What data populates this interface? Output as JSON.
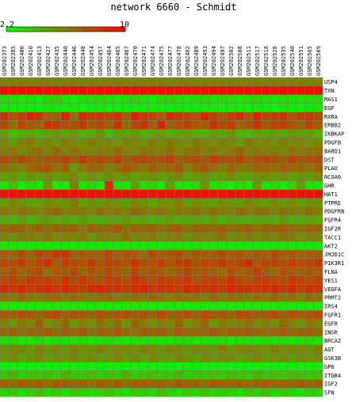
{
  "chart_data": {
    "type": "heatmap",
    "title": "network 6660 - Schmidt",
    "colorbar": {
      "min": 2.2,
      "max": 10,
      "min_label": "2.2",
      "max_label": "10",
      "low_color": "#00ff00",
      "high_color": "#ff0000"
    },
    "columns": [
      "GSM202373",
      "GSM202385",
      "GSM202400",
      "GSM202410",
      "GSM202413",
      "GSM202427",
      "GSM202435",
      "GSM202440",
      "GSM202446",
      "GSM202448",
      "GSM202454",
      "GSM202457",
      "GSM202464",
      "GSM202465",
      "GSM202467",
      "GSM202470",
      "GSM202471",
      "GSM202474",
      "GSM202475",
      "GSM202477",
      "GSM202478",
      "GSM202482",
      "GSM202489",
      "GSM202493",
      "GSM202494",
      "GSM202497",
      "GSM202502",
      "GSM202508",
      "GSM202511",
      "GSM202517",
      "GSM202518",
      "GSM202528",
      "GSM202535",
      "GSM202540",
      "GSM202551",
      "GSM202565",
      "GSM202569"
    ],
    "rows": [
      "USP4",
      "TXN",
      "MAS1",
      "EGF",
      "RXRA",
      "ERBB2",
      "IKBKAP",
      "PDGFB",
      "BARD1",
      "DST",
      "PLAU",
      "NCOA6",
      "GHR",
      "HAT1",
      "PTPRE",
      "PDGFRB",
      "FGFR4",
      "IGF2R",
      "TACC1",
      "AKT2",
      "JMJD1C",
      "PIK3R1",
      "FLNA",
      "YES1",
      "VEGFA",
      "PRMT2",
      "IRS4",
      "FGFR1",
      "EGFR",
      "INSR",
      "BRCA2",
      "AGT",
      "GSK3B",
      "GP6",
      "ITGB4",
      "IGF2",
      "SFN"
    ],
    "values": [
      [
        6.1,
        6.1,
        6.1,
        6.1,
        6.1,
        6.1,
        6.1,
        6.1,
        6.1,
        6.1,
        6.1,
        6.1,
        6.1,
        6.1,
        6.1,
        6.1,
        6.1,
        6.1,
        6.1,
        6.1,
        6.1,
        6.1,
        6.1,
        6.1,
        6.1,
        6.1,
        6.1,
        6.1,
        6.1,
        6.1,
        6.1,
        6.1,
        6.1,
        6.1,
        6.1,
        6.1,
        6.1
      ],
      [
        9.6,
        9.6,
        9.6,
        9.6,
        9.6,
        9.6,
        9.6,
        9.6,
        9.6,
        9.6,
        9.6,
        9.6,
        9.6,
        9.6,
        9.6,
        9.6,
        9.6,
        9.6,
        9.6,
        9.6,
        9.6,
        9.6,
        9.6,
        9.6,
        9.6,
        9.6,
        9.6,
        9.6,
        9.6,
        9.6,
        9.6,
        9.6,
        9.6,
        9.6,
        9.6,
        9.6,
        9.6
      ],
      [
        3.2,
        3.0,
        2.8,
        3.0,
        2.6,
        3.4,
        3.6,
        3.0,
        2.4,
        2.9,
        3.1,
        3.3,
        3.0,
        2.8,
        3.1,
        3.5,
        3.0,
        2.6,
        3.2,
        3.4,
        3.0,
        2.8,
        3.1,
        3.3,
        2.9,
        3.2,
        3.0,
        2.7,
        3.1,
        3.4,
        3.0,
        2.9,
        3.2,
        3.1,
        2.8,
        3.0,
        3.3
      ],
      [
        2.7,
        2.8,
        2.7,
        2.6,
        2.5,
        2.8,
        2.7,
        2.6,
        2.8,
        2.7,
        2.6,
        2.8,
        2.7,
        2.6,
        2.8,
        2.7,
        2.6,
        2.8,
        2.7,
        2.6,
        2.8,
        2.7,
        2.6,
        2.8,
        2.7,
        2.6,
        2.8,
        2.7,
        2.6,
        2.8,
        2.7,
        2.6,
        2.8,
        2.7,
        2.6,
        2.8,
        2.7
      ],
      [
        8.3,
        7.6,
        8.1,
        9.0,
        8.4,
        7.2,
        7.0,
        8.8,
        6.6,
        8.6,
        8.1,
        8.3,
        7.9,
        8.5,
        7.1,
        9.1,
        8.2,
        8.0,
        7.4,
        8.6,
        8.2,
        7.8,
        7.6,
        8.9,
        8.0,
        7.4,
        8.1,
        8.5,
        7.3,
        8.8,
        7.9,
        8.2,
        8.3,
        7.5,
        8.0,
        8.1,
        7.7
      ],
      [
        7.7,
        6.5,
        8.0,
        7.3,
        6.9,
        8.4,
        8.1,
        7.5,
        7.8,
        8.3,
        7.2,
        7.9,
        7.1,
        8.5,
        6.6,
        7.8,
        8.3,
        7.0,
        8.8,
        6.9,
        7.6,
        8.0,
        7.4,
        7.2,
        8.5,
        7.7,
        8.1,
        6.9,
        7.5,
        8.4,
        7.3,
        7.9,
        8.1,
        7.6,
        6.8,
        8.0,
        7.4
      ],
      [
        5.1,
        4.2,
        4.6,
        5.0,
        4.4,
        4.9,
        5.5,
        4.7,
        5.2,
        4.5,
        4.8,
        5.6,
        4.3,
        5.1,
        4.9,
        5.4,
        4.6,
        5.0,
        5.3,
        4.5,
        4.8,
        5.2,
        4.7,
        4.4,
        5.1,
        4.9,
        5.5,
        4.6,
        4.3,
        5.0,
        4.8,
        5.2,
        4.7,
        5.4,
        4.9,
        5.3,
        4.6
      ],
      [
        5.9,
        5.2,
        6.1,
        6.4,
        5.5,
        6.0,
        5.4,
        6.3,
        5.7,
        5.6,
        6.2,
        5.8,
        6.0,
        5.3,
        6.1,
        5.9,
        5.5,
        6.4,
        5.7,
        6.3,
        5.8,
        5.4,
        6.2,
        6.0,
        5.6,
        6.1,
        5.9,
        5.3,
        6.3,
        5.7,
        6.0,
        5.5,
        6.2,
        5.8,
        6.1,
        5.6,
        5.9
      ],
      [
        6.2,
        6.4,
        5.8,
        6.3,
        6.5,
        6.0,
        6.7,
        5.9,
        6.6,
        6.1,
        5.8,
        6.4,
        6.2,
        6.8,
        6.0,
        5.9,
        6.5,
        6.3,
        6.1,
        6.7,
        5.9,
        6.3,
        6.6,
        6.0,
        6.4,
        5.8,
        6.2,
        6.9,
        6.1,
        6.5,
        6.0,
        6.3,
        5.9,
        6.7,
        6.2,
        6.4,
        6.6
      ],
      [
        7.6,
        7.1,
        7.8,
        7.2,
        6.9,
        7.5,
        7.3,
        7.9,
        7.0,
        8.2,
        7.4,
        7.7,
        7.2,
        8.0,
        7.1,
        7.6,
        7.8,
        7.3,
        7.5,
        8.3,
        7.0,
        7.4,
        7.7,
        7.2,
        8.1,
        7.6,
        7.3,
        7.9,
        7.1,
        7.5,
        7.8,
        7.4,
        7.2,
        8.0,
        7.3,
        7.6,
        7.7
      ],
      [
        6.6,
        6.2,
        5.9,
        6.8,
        7.3,
        7.5,
        6.4,
        7.0,
        5.4,
        6.3,
        7.1,
        6.9,
        6.0,
        6.5,
        7.4,
        6.7,
        6.2,
        7.2,
        6.5,
        6.8,
        7.4,
        6.1,
        6.9,
        7.3,
        6.6,
        6.0,
        7.0,
        6.4,
        6.3,
        7.1,
        6.8,
        6.5,
        7.2,
        6.7,
        6.9,
        6.3,
        7.0
      ],
      [
        5.2,
        5.5,
        4.8,
        5.6,
        5.0,
        5.7,
        5.3,
        5.4,
        5.9,
        4.9,
        5.5,
        5.1,
        5.8,
        5.3,
        5.6,
        5.0,
        5.4,
        5.7,
        5.2,
        5.5,
        5.9,
        5.1,
        5.3,
        5.6,
        4.9,
        5.4,
        5.8,
        5.2,
        5.0,
        5.5,
        5.7,
        5.3,
        5.6,
        5.1,
        5.4,
        5.2,
        5.8
      ],
      [
        2.9,
        4.3,
        2.6,
        3.3,
        2.8,
        5.4,
        2.7,
        3.1,
        5.8,
        3.0,
        3.4,
        2.7,
        8.4,
        3.1,
        2.9,
        5.0,
        3.2,
        3.6,
        2.8,
        5.3,
        3.0,
        2.7,
        3.4,
        5.6,
        2.9,
        3.1,
        2.6,
        3.3,
        2.8,
        5.1,
        2.9,
        3.2,
        2.7,
        3.5,
        5.2,
        3.0,
        2.8
      ],
      [
        9.5,
        9.5,
        9.5,
        9.5,
        9.5,
        9.5,
        9.5,
        9.5,
        9.5,
        9.5,
        9.5,
        9.5,
        9.5,
        9.5,
        9.5,
        9.5,
        9.5,
        9.5,
        9.5,
        9.5,
        9.5,
        9.5,
        9.5,
        9.5,
        9.5,
        9.5,
        9.5,
        9.5,
        9.5,
        9.5,
        9.5,
        9.5,
        9.5,
        9.5,
        9.5,
        9.5,
        9.5
      ],
      [
        5.2,
        6.1,
        5.5,
        4.9,
        5.0,
        5.8,
        5.6,
        5.4,
        6.3,
        5.0,
        5.7,
        5.2,
        5.9,
        5.3,
        5.1,
        6.0,
        5.5,
        4.8,
        5.7,
        5.4,
        6.2,
        5.1,
        5.6,
        5.3,
        5.0,
        5.8,
        5.5,
        5.2,
        6.0,
        5.4,
        5.1,
        5.7,
        5.3,
        5.9,
        5.0,
        5.6,
        5.4
      ],
      [
        6.4,
        6.0,
        6.6,
        6.2,
        5.8,
        6.5,
        6.9,
        6.1,
        6.4,
        6.3,
        5.9,
        6.7,
        6.2,
        6.5,
        6.0,
        6.8,
        6.3,
        6.1,
        6.6,
        5.9,
        6.4,
        6.2,
        6.7,
        6.0,
        6.5,
        6.3,
        6.1,
        6.8,
        6.2,
        6.4,
        6.6,
        6.0,
        6.5,
        6.3,
        6.1,
        6.7,
        6.2
      ],
      [
        4.8,
        4.6,
        5.1,
        4.4,
        4.9,
        5.3,
        4.7,
        5.0,
        4.5,
        5.2,
        4.8,
        4.6,
        5.0,
        4.9,
        5.4,
        4.7,
        5.1,
        4.5,
        4.8,
        5.2,
        4.6,
        5.0,
        4.9,
        4.7,
        5.3,
        4.5,
        5.1,
        4.8,
        4.6,
        5.0,
        4.9,
        4.7,
        5.2,
        4.6,
        4.8,
        5.1,
        4.7
      ],
      [
        6.8,
        7.4,
        6.9,
        6.6,
        7.2,
        6.5,
        7.1,
        6.8,
        7.0,
        6.3,
        7.3,
        6.7,
        6.9,
        7.5,
        6.4,
        7.1,
        6.8,
        7.2,
        6.6,
        7.0,
        7.4,
        6.5,
        6.9,
        7.1,
        6.7,
        7.3,
        6.6,
        6.8,
        7.2,
        6.5,
        7.0,
        6.9,
        7.3,
        6.7,
        6.4,
        7.1,
        6.8
      ],
      [
        6.0,
        5.6,
        6.3,
        6.2,
        5.8,
        6.5,
        5.7,
        6.1,
        5.9,
        6.4,
        5.5,
        6.2,
        6.0,
        5.8,
        6.6,
        5.9,
        6.1,
        6.3,
        5.7,
        6.0,
        6.4,
        5.6,
        6.2,
        5.9,
        6.1,
        6.5,
        5.8,
        6.0,
        6.3,
        5.7,
        6.1,
        5.9,
        6.4,
        6.2,
        5.6,
        6.0,
        5.8
      ],
      [
        2.8,
        2.8,
        2.8,
        2.8,
        2.8,
        2.8,
        2.8,
        2.8,
        2.8,
        2.8,
        2.8,
        2.8,
        2.8,
        2.8,
        2.8,
        2.8,
        2.8,
        2.8,
        2.8,
        2.8,
        2.8,
        2.8,
        2.8,
        2.8,
        2.8,
        2.8,
        2.8,
        2.8,
        2.8,
        2.8,
        2.8,
        2.8,
        2.8,
        2.8,
        2.8,
        2.8,
        2.8
      ],
      [
        7.3,
        7.0,
        7.6,
        6.8,
        7.9,
        7.4,
        8.2,
        8.4,
        7.1,
        7.5,
        6.9,
        7.2,
        7.8,
        7.0,
        7.6,
        7.3,
        6.7,
        7.9,
        7.1,
        7.4,
        7.7,
        6.8,
        7.5,
        7.2,
        7.0,
        7.8,
        7.3,
        7.6,
        6.9,
        7.4,
        7.1,
        7.7,
        7.2,
        7.5,
        6.8,
        7.3,
        7.0
      ],
      [
        7.9,
        7.5,
        8.2,
        7.4,
        7.8,
        8.6,
        7.2,
        8.1,
        7.9,
        7.6,
        8.3,
        7.3,
        8.0,
        7.7,
        7.5,
        8.4,
        7.8,
        7.6,
        8.1,
        7.4,
        7.9,
        8.2,
        7.5,
        8.0,
        7.7,
        8.3,
        7.6,
        7.9,
        8.5,
        7.3,
        8.0,
        7.8,
        7.6,
        8.2,
        7.7,
        7.9,
        8.1
      ],
      [
        7.1,
        7.6,
        6.9,
        7.3,
        7.8,
        6.7,
        7.4,
        7.2,
        7.9,
        6.8,
        7.5,
        7.0,
        7.7,
        7.3,
        6.9,
        8.0,
        7.1,
        7.6,
        7.2,
        6.8,
        7.4,
        7.8,
        7.0,
        7.5,
        7.3,
        6.9,
        7.7,
        7.1,
        7.4,
        8.1,
        7.2,
        6.9,
        7.6,
        7.3,
        7.0,
        7.5,
        7.2
      ],
      [
        7.8,
        8.1,
        7.5,
        8.3,
        7.9,
        8.0,
        7.6,
        8.4,
        7.7,
        8.2,
        7.8,
        7.5,
        8.1,
        8.0,
        7.7,
        8.5,
        7.9,
        7.6,
        8.2,
        7.8,
        8.0,
        8.3,
        7.6,
        7.9,
        8.1,
        7.7,
        8.4,
        7.8,
        7.5,
        8.0,
        8.2,
        7.9,
        7.7,
        8.3,
        8.0,
        7.6,
        8.1
      ],
      [
        8.6,
        8.3,
        8.8,
        8.1,
        8.5,
        8.9,
        8.2,
        8.7,
        8.4,
        8.0,
        8.6,
        8.8,
        8.3,
        8.5,
        8.1,
        8.7,
        8.9,
        8.2,
        8.4,
        8.6,
        8.0,
        8.8,
        8.5,
        8.3,
        8.7,
        8.1,
        8.9,
        8.4,
        8.6,
        8.2,
        8.5,
        8.8,
        8.3,
        8.7,
        8.0,
        8.6,
        8.4
      ],
      [
        6.5,
        6.1,
        6.8,
        6.3,
        6.0,
        6.6,
        6.9,
        6.2,
        6.7,
        6.4,
        6.1,
        6.5,
        6.8,
        6.0,
        6.3,
        6.6,
        6.2,
        6.9,
        6.4,
        6.1,
        6.7,
        6.3,
        6.5,
        6.0,
        6.8,
        6.2,
        6.6,
        6.4,
        6.1,
        6.7,
        6.3,
        6.9,
        6.2,
        6.5,
        6.0,
        6.8,
        6.4
      ],
      [
        2.8,
        2.8,
        2.8,
        2.8,
        2.8,
        2.8,
        2.8,
        2.8,
        2.8,
        2.8,
        2.8,
        2.8,
        2.8,
        2.8,
        2.8,
        2.8,
        2.8,
        2.8,
        2.8,
        2.8,
        2.8,
        2.8,
        2.8,
        2.8,
        2.8,
        2.8,
        2.8,
        2.8,
        2.8,
        2.8,
        2.8,
        2.8,
        2.8,
        2.8,
        2.8,
        2.8,
        2.8
      ],
      [
        7.4,
        7.0,
        7.7,
        7.2,
        6.8,
        7.5,
        7.9,
        7.1,
        7.6,
        7.3,
        6.9,
        7.8,
        7.0,
        7.4,
        7.7,
        7.2,
        7.5,
        6.9,
        7.8,
        7.1,
        7.3,
        7.6,
        7.0,
        7.9,
        7.2,
        7.4,
        6.8,
        7.7,
        7.5,
        7.1,
        7.3,
        7.8,
        7.0,
        7.6,
        7.2,
        7.4,
        7.7
      ],
      [
        6.1,
        5.2,
        6.4,
        5.8,
        7.1,
        5.5,
        6.0,
        6.8,
        5.3,
        6.2,
        5.7,
        6.5,
        5.9,
        6.6,
        5.4,
        7.0,
        6.1,
        5.6,
        6.3,
        5.8,
        6.9,
        5.5,
        6.2,
        6.7,
        5.3,
        6.4,
        5.9,
        6.0,
        6.6,
        5.7,
        6.3,
        5.4,
        6.8,
        6.1,
        5.6,
        6.5,
        6.0
      ],
      [
        6.7,
        7.2,
        6.5,
        7.0,
        6.8,
        7.4,
        6.6,
        7.1,
        6.9,
        7.3,
        6.4,
        7.0,
        6.7,
        7.5,
        6.8,
        6.6,
        7.2,
        6.9,
        7.1,
        6.5,
        7.3,
        6.8,
        7.0,
        6.7,
        7.4,
        6.6,
        7.1,
        6.9,
        7.2,
        6.8,
        6.5,
        7.0,
        7.3,
        6.7,
        6.9,
        7.1,
        6.6
      ],
      [
        3.1,
        3.3,
        2.9,
        3.0,
        3.4,
        2.8,
        3.2,
        3.1,
        3.0,
        3.3,
        2.9,
        3.1,
        3.4,
        3.0,
        2.8,
        3.2,
        3.1,
        3.3,
        2.9,
        3.0,
        3.2,
        3.4,
        2.9,
        3.1,
        3.0,
        3.3,
        2.8,
        3.2,
        3.1,
        2.9,
        3.3,
        3.0,
        3.2,
        2.9,
        3.1,
        3.4,
        3.0
      ],
      [
        5.5,
        6.0,
        5.8,
        5.3,
        6.2,
        5.6,
        5.9,
        5.4,
        6.1,
        5.7,
        5.5,
        6.3,
        5.6,
        5.8,
        6.0,
        5.4,
        6.2,
        5.7,
        5.5,
        6.1,
        5.9,
        5.3,
        6.0,
        5.8,
        5.6,
        6.2,
        5.4,
        5.9,
        6.1,
        5.7,
        5.5,
        6.3,
        5.6,
        6.0,
        5.8,
        5.4,
        6.1
      ],
      [
        5.4,
        5.8,
        5.0,
        5.6,
        5.9,
        5.2,
        5.7,
        5.5,
        6.0,
        5.3,
        5.8,
        5.1,
        5.6,
        6.1,
        5.4,
        5.7,
        5.2,
        5.9,
        5.5,
        5.3,
        6.0,
        5.6,
        5.1,
        5.8,
        5.4,
        5.7,
        5.9,
        5.2,
        5.5,
        6.1,
        5.3,
        5.6,
        5.8,
        5.0,
        5.7,
        5.4,
        5.9
      ],
      [
        2.6,
        2.6,
        2.6,
        2.6,
        2.6,
        2.6,
        2.6,
        2.6,
        2.6,
        2.6,
        2.6,
        2.6,
        2.6,
        2.6,
        2.6,
        2.6,
        2.6,
        2.6,
        2.6,
        2.6,
        2.6,
        2.6,
        2.6,
        2.6,
        2.6,
        2.6,
        2.6,
        2.6,
        2.6,
        2.6,
        2.6,
        2.6,
        2.6,
        2.6,
        2.6,
        2.6,
        2.6
      ],
      [
        3.8,
        4.5,
        3.6,
        4.1,
        3.9,
        4.3,
        3.7,
        4.6,
        4.0,
        3.8,
        4.4,
        3.6,
        4.2,
        3.9,
        4.7,
        3.7,
        4.1,
        4.3,
        3.8,
        4.0,
        4.5,
        3.6,
        4.2,
        3.9,
        4.1,
        3.7,
        4.4,
        4.0,
        3.8,
        4.6,
        3.9,
        4.2,
        3.7,
        4.3,
        4.0,
        3.8,
        4.1
      ],
      [
        7.0,
        6.7,
        7.3,
        6.9,
        7.2,
        6.6,
        7.4,
        7.0,
        6.8,
        7.1,
        6.5,
        7.3,
        6.9,
        7.5,
        6.7,
        7.0,
        7.2,
        6.8,
        7.1,
        6.6,
        7.4,
        6.9,
        7.0,
        6.7,
        7.3,
        7.1,
        6.8,
        7.2,
        6.6,
        7.0,
        7.4,
        6.9,
        7.1,
        6.7,
        7.2,
        6.8,
        7.0
      ],
      [
        3.4,
        3.9,
        3.0,
        3.6,
        4.2,
        3.3,
        3.8,
        3.1,
        4.0,
        3.5,
        3.2,
        3.7,
        4.1,
        3.4,
        3.0,
        3.9,
        3.6,
        3.3,
        4.3,
        3.5,
        3.1,
        3.8,
        3.4,
        4.0,
        3.2,
        3.7,
        3.5,
        3.0,
        3.9,
        3.6,
        4.1,
        3.3,
        3.8,
        3.4,
        3.1,
        3.7,
        3.5
      ]
    ]
  }
}
